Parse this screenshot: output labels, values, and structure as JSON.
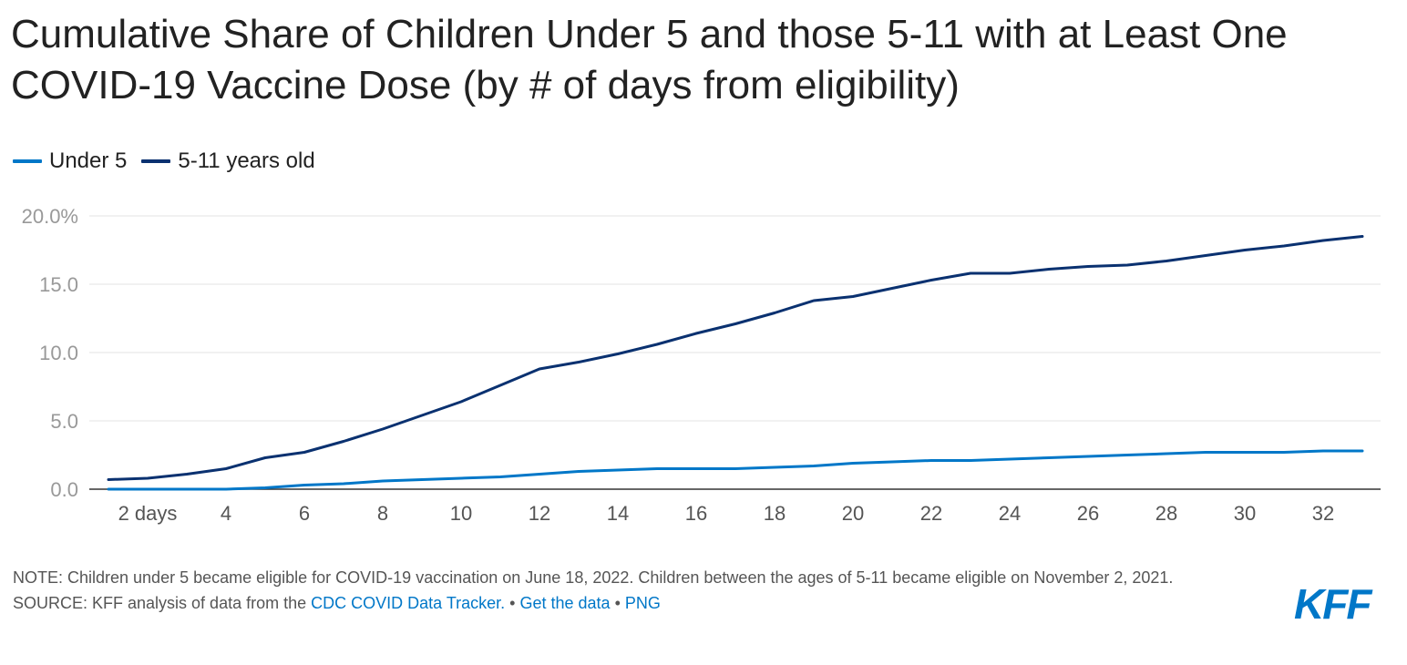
{
  "title": "Cumulative Share of Children Under 5 and those 5-11 with at Least One COVID-19 Vaccine Dose (by # of days from eligibility)",
  "legend": [
    {
      "label": "Under 5",
      "color": "#0077c8"
    },
    {
      "label": "5-11 years old",
      "color": "#0a3170"
    }
  ],
  "footer": {
    "note": "NOTE: Children under 5 became eligible for COVID-19 vaccination on June 18, 2022. Children between the ages of 5-11 became eligible on November 2, 2021.",
    "source_prefix": "SOURCE: KFF analysis of data from the ",
    "source_link": "CDC COVID Data Tracker.",
    "sep1": " • ",
    "get_data": "Get the data",
    "sep2": " • ",
    "png": "PNG"
  },
  "logo_text": "KFF",
  "chart_data": {
    "type": "line",
    "title": "Cumulative Share of Children Under 5 and those 5-11 with at Least One COVID-19 Vaccine Dose (by # of days from eligibility)",
    "x": [
      1,
      2,
      3,
      4,
      5,
      6,
      7,
      8,
      9,
      10,
      11,
      12,
      13,
      14,
      15,
      16,
      17,
      18,
      19,
      20,
      21,
      22,
      23,
      24,
      25,
      26,
      27,
      28,
      29,
      30,
      31,
      32,
      33
    ],
    "x_ticks": [
      2,
      4,
      6,
      8,
      10,
      12,
      14,
      16,
      18,
      20,
      22,
      24,
      26,
      28,
      30,
      32
    ],
    "x_tick_labels": [
      "2 days",
      "4",
      "6",
      "8",
      "10",
      "12",
      "14",
      "16",
      "18",
      "20",
      "22",
      "24",
      "26",
      "28",
      "30",
      "32"
    ],
    "xlim": [
      1,
      33
    ],
    "y_ticks": [
      0,
      5,
      10,
      15,
      20
    ],
    "y_tick_labels": [
      "0.0",
      "5.0",
      "10.0",
      "15.0",
      "20.0%"
    ],
    "ylim": [
      0,
      20
    ],
    "grid": true,
    "legend_position": "top-left",
    "series": [
      {
        "name": "Under 5",
        "color": "#0077c8",
        "values": [
          0.0,
          0.0,
          0.0,
          0.0,
          0.1,
          0.3,
          0.4,
          0.6,
          0.7,
          0.8,
          0.9,
          1.1,
          1.3,
          1.4,
          1.5,
          1.5,
          1.5,
          1.6,
          1.7,
          1.9,
          2.0,
          2.1,
          2.1,
          2.2,
          2.3,
          2.4,
          2.5,
          2.6,
          2.7,
          2.7,
          2.7,
          2.8,
          2.8
        ]
      },
      {
        "name": "5-11 years old",
        "color": "#0a3170",
        "values": [
          0.7,
          0.8,
          1.1,
          1.5,
          2.3,
          2.7,
          3.5,
          4.4,
          5.4,
          6.4,
          7.6,
          8.8,
          9.3,
          9.9,
          10.6,
          11.4,
          12.1,
          12.9,
          13.8,
          14.1,
          14.7,
          15.3,
          15.8,
          15.8,
          16.1,
          16.3,
          16.4,
          16.7,
          17.1,
          17.5,
          17.8,
          18.2,
          18.5
        ]
      }
    ]
  }
}
